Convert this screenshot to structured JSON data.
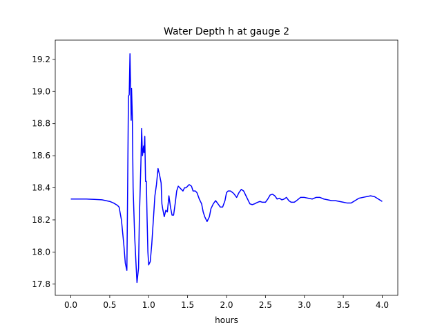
{
  "chart_data": {
    "type": "line",
    "title": "Water Depth h at gauge 2",
    "xlabel": "hours",
    "ylabel": "",
    "xlim": [
      -0.2,
      4.2
    ],
    "ylim": [
      17.73,
      19.32
    ],
    "xticks": [
      0.0,
      0.5,
      1.0,
      1.5,
      2.0,
      2.5,
      3.0,
      3.5,
      4.0
    ],
    "xtick_labels": [
      "0.0",
      "0.5",
      "1.0",
      "1.5",
      "2.0",
      "2.5",
      "3.0",
      "3.5",
      "4.0"
    ],
    "yticks": [
      17.8,
      18.0,
      18.2,
      18.4,
      18.6,
      18.8,
      19.0,
      19.2
    ],
    "ytick_labels": [
      "17.8",
      "18.0",
      "18.2",
      "18.4",
      "18.6",
      "18.8",
      "19.0",
      "19.2"
    ],
    "grid": false,
    "series": [
      {
        "color": "#0000ff",
        "points": [
          [
            0.0,
            18.33
          ],
          [
            0.2,
            18.33
          ],
          [
            0.3,
            18.328
          ],
          [
            0.4,
            18.325
          ],
          [
            0.5,
            18.315
          ],
          [
            0.55,
            18.305
          ],
          [
            0.6,
            18.29
          ],
          [
            0.62,
            18.28
          ],
          [
            0.65,
            18.2
          ],
          [
            0.68,
            18.05
          ],
          [
            0.7,
            17.93
          ],
          [
            0.72,
            17.885
          ],
          [
            0.73,
            18.4
          ],
          [
            0.74,
            18.97
          ],
          [
            0.75,
            18.98
          ],
          [
            0.76,
            19.235
          ],
          [
            0.765,
            19.1
          ],
          [
            0.77,
            19.0
          ],
          [
            0.775,
            18.82
          ],
          [
            0.78,
            19.02
          ],
          [
            0.79,
            18.85
          ],
          [
            0.8,
            18.4
          ],
          [
            0.82,
            18.1
          ],
          [
            0.84,
            17.9
          ],
          [
            0.85,
            17.81
          ],
          [
            0.87,
            17.9
          ],
          [
            0.88,
            18.2
          ],
          [
            0.9,
            18.55
          ],
          [
            0.91,
            18.77
          ],
          [
            0.92,
            18.6
          ],
          [
            0.935,
            18.66
          ],
          [
            0.94,
            18.62
          ],
          [
            0.95,
            18.72
          ],
          [
            0.96,
            18.44
          ],
          [
            0.97,
            18.44
          ],
          [
            0.98,
            18.2
          ],
          [
            0.99,
            18.0
          ],
          [
            1.0,
            17.92
          ],
          [
            1.02,
            17.94
          ],
          [
            1.04,
            18.05
          ],
          [
            1.06,
            18.2
          ],
          [
            1.08,
            18.35
          ],
          [
            1.1,
            18.42
          ],
          [
            1.12,
            18.52
          ],
          [
            1.14,
            18.48
          ],
          [
            1.16,
            18.43
          ],
          [
            1.17,
            18.3
          ],
          [
            1.18,
            18.27
          ],
          [
            1.2,
            18.22
          ],
          [
            1.22,
            18.26
          ],
          [
            1.24,
            18.25
          ],
          [
            1.26,
            18.35
          ],
          [
            1.28,
            18.28
          ],
          [
            1.3,
            18.23
          ],
          [
            1.32,
            18.23
          ],
          [
            1.34,
            18.3
          ],
          [
            1.36,
            18.38
          ],
          [
            1.38,
            18.41
          ],
          [
            1.4,
            18.4
          ],
          [
            1.42,
            18.39
          ],
          [
            1.44,
            18.38
          ],
          [
            1.46,
            18.4
          ],
          [
            1.48,
            18.4
          ],
          [
            1.5,
            18.41
          ],
          [
            1.52,
            18.42
          ],
          [
            1.55,
            18.41
          ],
          [
            1.57,
            18.38
          ],
          [
            1.6,
            18.38
          ],
          [
            1.62,
            18.37
          ],
          [
            1.65,
            18.33
          ],
          [
            1.68,
            18.3
          ],
          [
            1.7,
            18.25
          ],
          [
            1.72,
            18.22
          ],
          [
            1.75,
            18.19
          ],
          [
            1.78,
            18.22
          ],
          [
            1.8,
            18.27
          ],
          [
            1.83,
            18.3
          ],
          [
            1.86,
            18.32
          ],
          [
            1.89,
            18.3
          ],
          [
            1.92,
            18.28
          ],
          [
            1.95,
            18.28
          ],
          [
            1.98,
            18.32
          ],
          [
            2.0,
            18.37
          ],
          [
            2.02,
            18.38
          ],
          [
            2.05,
            18.38
          ],
          [
            2.08,
            18.37
          ],
          [
            2.1,
            18.36
          ],
          [
            2.13,
            18.34
          ],
          [
            2.16,
            18.37
          ],
          [
            2.19,
            18.39
          ],
          [
            2.22,
            18.38
          ],
          [
            2.25,
            18.35
          ],
          [
            2.28,
            18.32
          ],
          [
            2.3,
            18.3
          ],
          [
            2.33,
            18.295
          ],
          [
            2.36,
            18.3
          ],
          [
            2.4,
            18.31
          ],
          [
            2.43,
            18.315
          ],
          [
            2.46,
            18.31
          ],
          [
            2.5,
            18.31
          ],
          [
            2.53,
            18.33
          ],
          [
            2.56,
            18.355
          ],
          [
            2.59,
            18.36
          ],
          [
            2.62,
            18.35
          ],
          [
            2.65,
            18.33
          ],
          [
            2.68,
            18.335
          ],
          [
            2.71,
            18.325
          ],
          [
            2.74,
            18.33
          ],
          [
            2.77,
            18.34
          ],
          [
            2.8,
            18.32
          ],
          [
            2.83,
            18.31
          ],
          [
            2.87,
            18.31
          ],
          [
            2.9,
            18.32
          ],
          [
            2.95,
            18.34
          ],
          [
            3.0,
            18.34
          ],
          [
            3.05,
            18.335
          ],
          [
            3.1,
            18.33
          ],
          [
            3.15,
            18.34
          ],
          [
            3.2,
            18.34
          ],
          [
            3.25,
            18.33
          ],
          [
            3.3,
            18.325
          ],
          [
            3.35,
            18.32
          ],
          [
            3.4,
            18.32
          ],
          [
            3.45,
            18.315
          ],
          [
            3.5,
            18.31
          ],
          [
            3.55,
            18.305
          ],
          [
            3.6,
            18.305
          ],
          [
            3.65,
            18.32
          ],
          [
            3.7,
            18.335
          ],
          [
            3.75,
            18.34
          ],
          [
            3.8,
            18.345
          ],
          [
            3.85,
            18.35
          ],
          [
            3.9,
            18.345
          ],
          [
            3.95,
            18.33
          ],
          [
            4.0,
            18.315
          ]
        ]
      }
    ]
  }
}
